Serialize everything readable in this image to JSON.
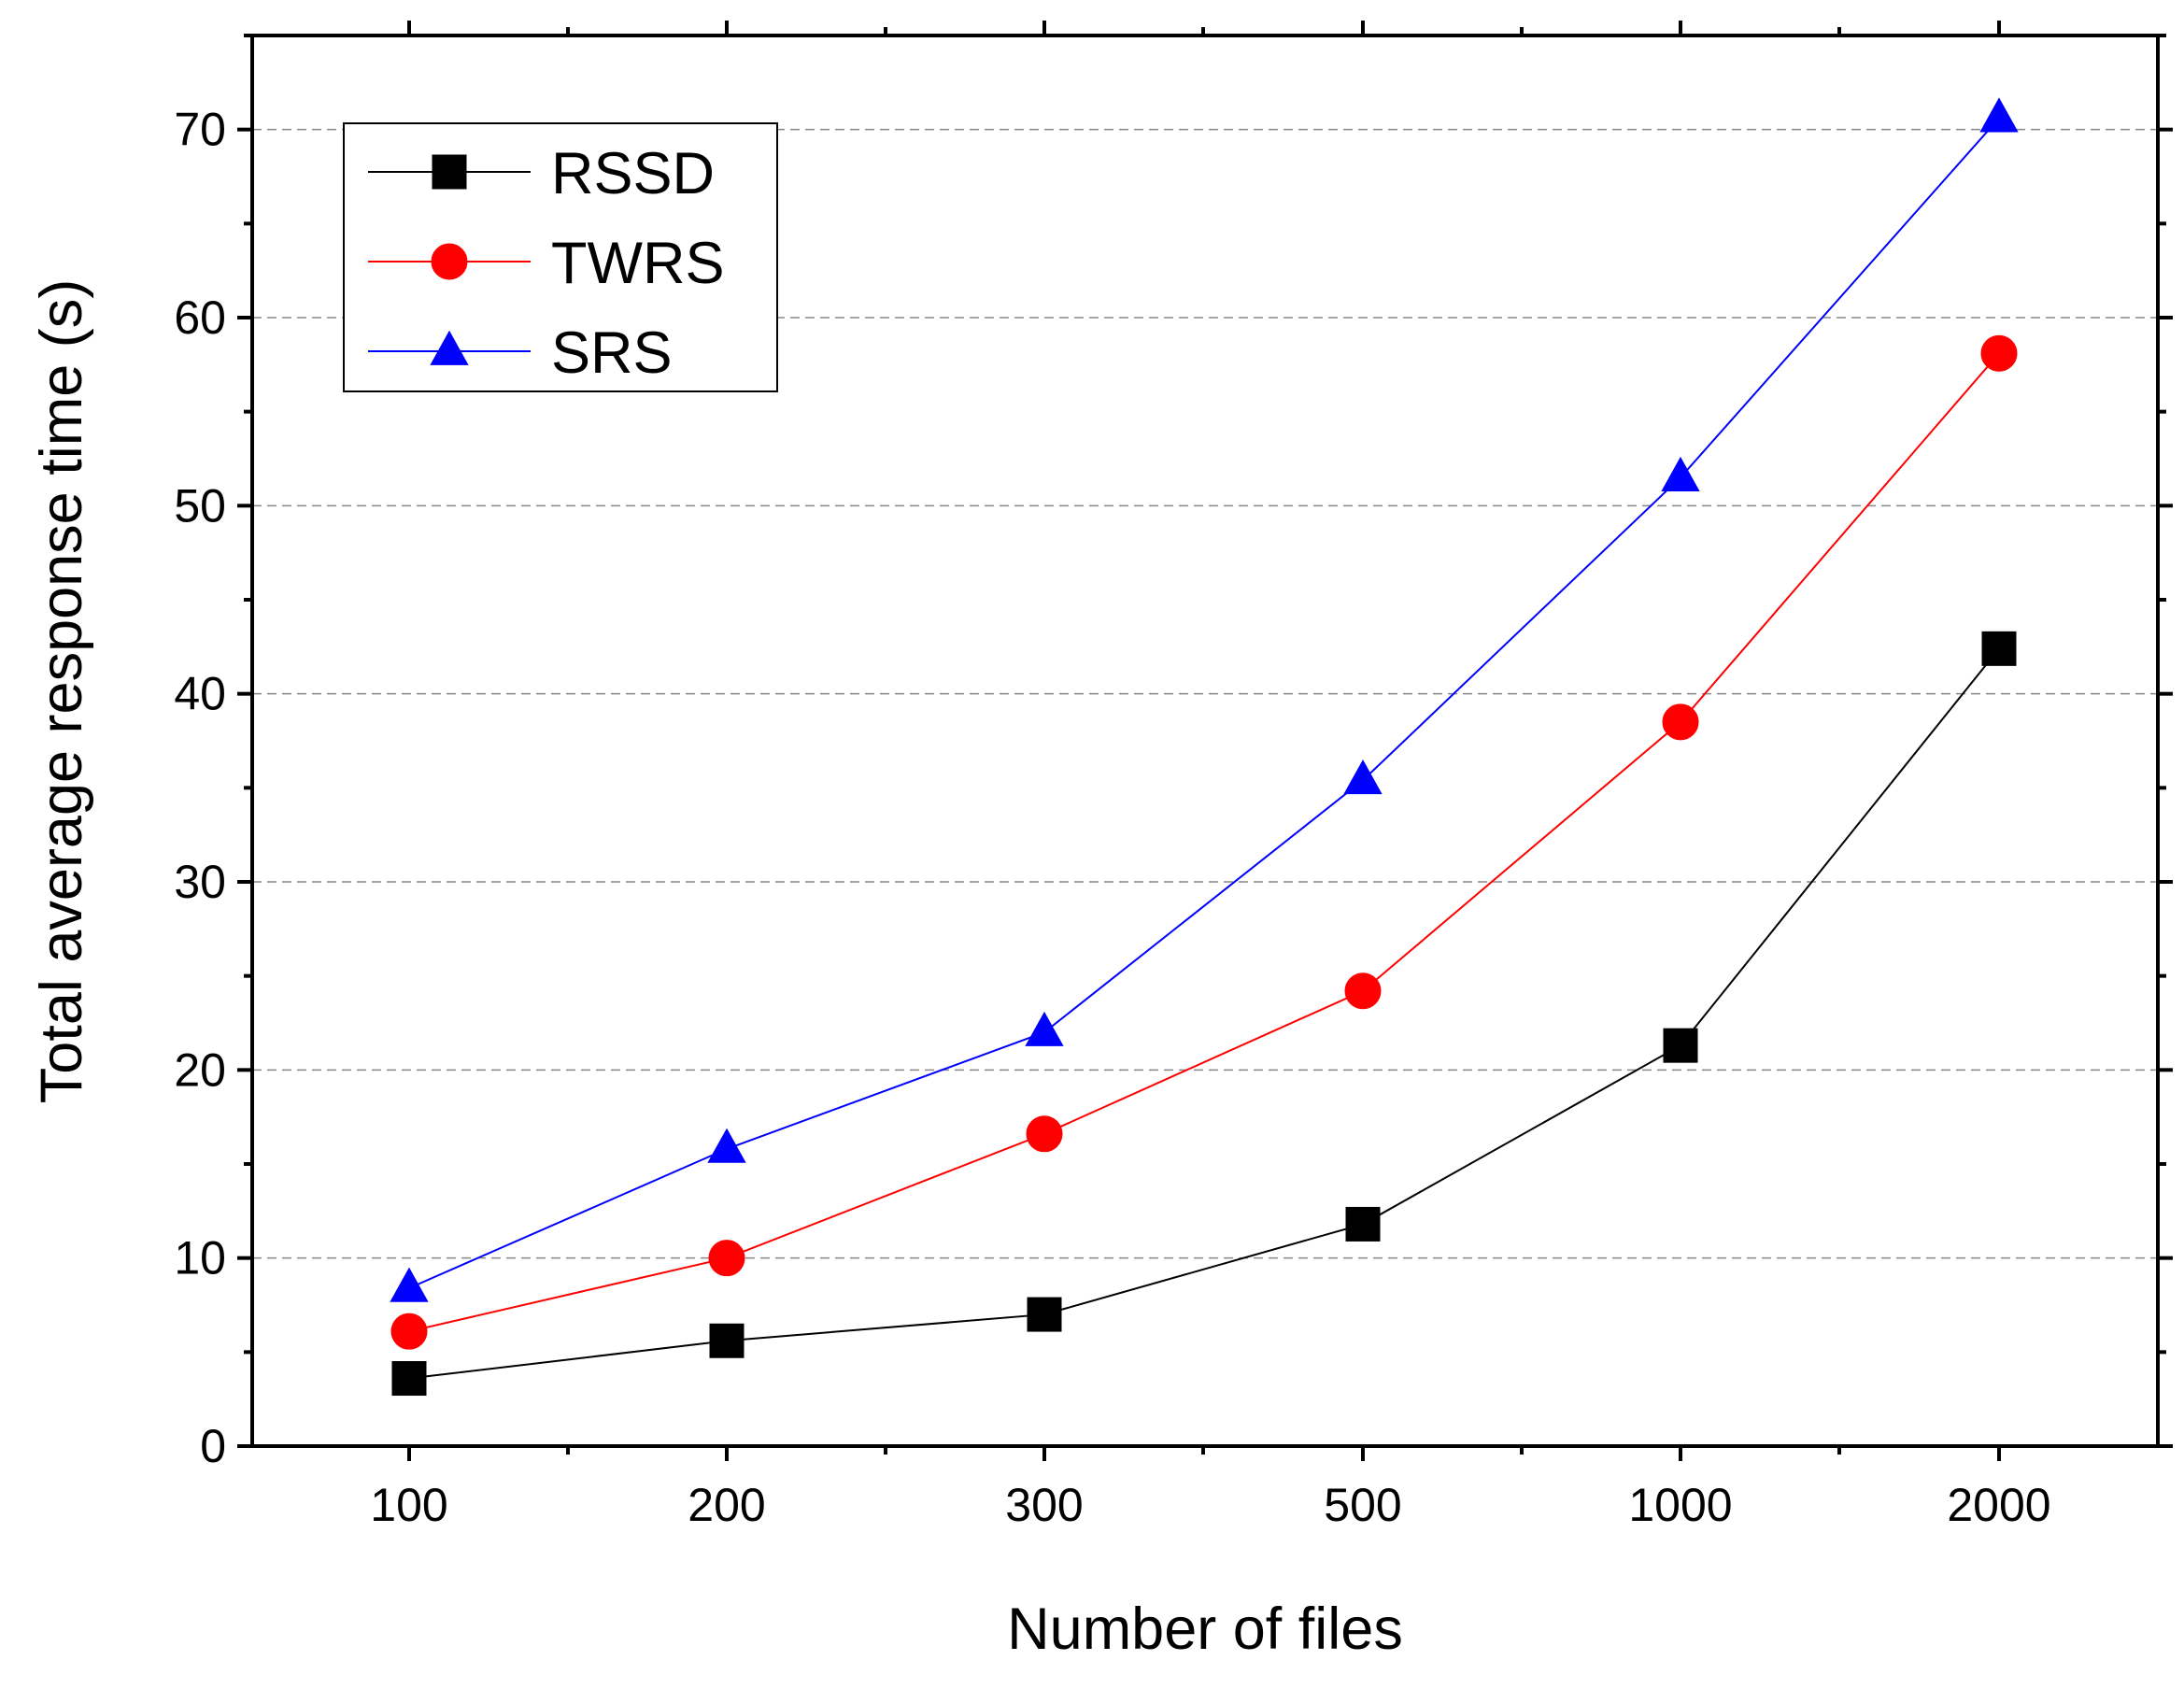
{
  "chart_data": {
    "type": "line",
    "title": "",
    "xlabel": "Number of files",
    "ylabel": "Total average response time (s)",
    "categories": [
      "100",
      "200",
      "300",
      "500",
      "1000",
      "2000"
    ],
    "ylim": [
      0,
      75
    ],
    "yticks": [
      0,
      10,
      20,
      30,
      40,
      50,
      60,
      70
    ],
    "grid": true,
    "legend_position": "top-left",
    "series": [
      {
        "name": "RSSD",
        "color": "#000000",
        "marker": "square",
        "values": [
          3.6,
          5.6,
          7.0,
          11.8,
          21.3,
          42.4
        ]
      },
      {
        "name": "TWRS",
        "color": "#ff0000",
        "marker": "circle",
        "values": [
          6.1,
          10.0,
          16.6,
          24.2,
          38.5,
          58.1
        ]
      },
      {
        "name": "SRS",
        "color": "#0000ff",
        "marker": "triangle",
        "values": [
          8.4,
          15.8,
          22.0,
          35.4,
          51.5,
          70.6
        ]
      }
    ]
  }
}
